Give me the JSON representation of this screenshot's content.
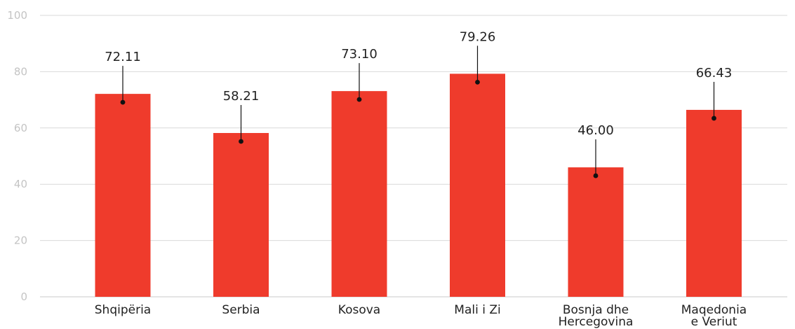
{
  "chart_data": {
    "type": "bar",
    "categories": [
      [
        "Shqipëria"
      ],
      [
        "Serbia"
      ],
      [
        "Kosova"
      ],
      [
        "Mali i Zi"
      ],
      [
        "Bosnja dhe",
        "Hercegovina"
      ],
      [
        "Maqedonia",
        "e Veriut"
      ]
    ],
    "values": [
      72.11,
      58.21,
      73.1,
      79.26,
      46.0,
      66.43
    ],
    "data_labels": [
      "72.11",
      "58.21",
      "73.10",
      "79.26",
      "46.00",
      "66.43"
    ],
    "yticks": [
      0,
      20,
      40,
      60,
      80,
      100
    ],
    "ylim": [
      0,
      100
    ],
    "grid": true,
    "title": "",
    "xlabel": "",
    "ylabel": "",
    "colors": {
      "bar": "#ef3b2c",
      "grid": "#d9d9d9",
      "tick_text": "#c4c4c4",
      "label_text": "#222222"
    }
  }
}
